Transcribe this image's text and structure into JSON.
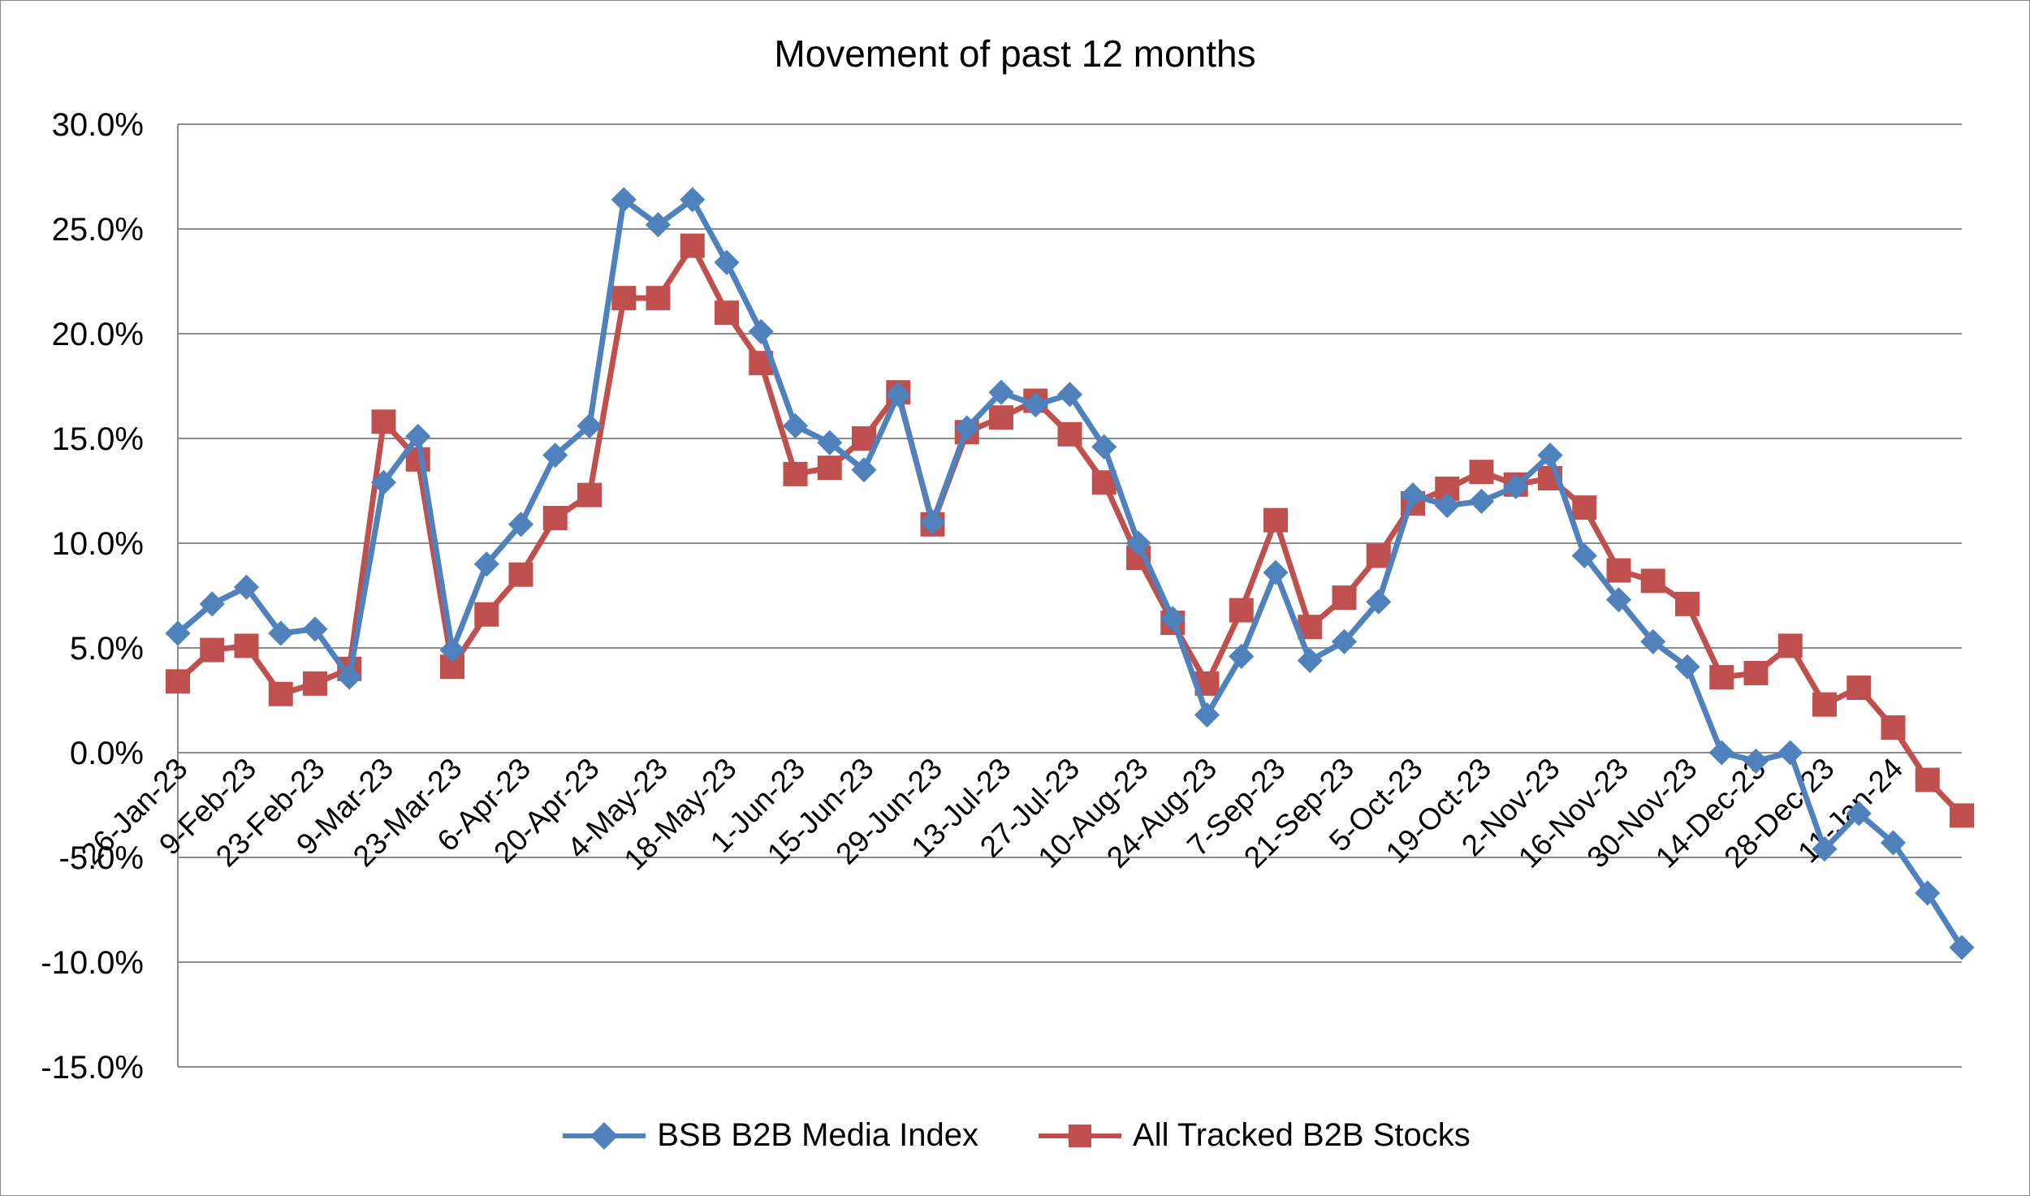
{
  "chart_data": {
    "type": "line",
    "title": "Movement of past 12 months",
    "xlabel": "",
    "ylabel": "",
    "ylim": [
      -15,
      30
    ],
    "y_ticks": [
      "30.0%",
      "25.0%",
      "20.0%",
      "15.0%",
      "10.0%",
      "5.0%",
      "0.0%",
      "-5.0%",
      "-10.0%",
      "-15.0%"
    ],
    "y_tick_values": [
      30,
      25,
      20,
      15,
      10,
      5,
      0,
      -5,
      -10,
      -15
    ],
    "x_tick_labels": [
      "26-Jan-23",
      "9-Feb-23",
      "23-Feb-23",
      "9-Mar-23",
      "23-Mar-23",
      "6-Apr-23",
      "20-Apr-23",
      "4-May-23",
      "18-May-23",
      "1-Jun-23",
      "15-Jun-23",
      "29-Jun-23",
      "13-Jul-23",
      "27-Jul-23",
      "10-Aug-23",
      "24-Aug-23",
      "7-Sep-23",
      "21-Sep-23",
      "5-Oct-23",
      "19-Oct-23",
      "2-Nov-23",
      "16-Nov-23",
      "30-Nov-23",
      "14-Dec-23",
      "28-Dec-23",
      "11-Jan-24"
    ],
    "x_tick_every": 2,
    "grid": true,
    "legend_position": "bottom",
    "series": [
      {
        "name": "BSB B2B Media Index",
        "color": "#4F81BD",
        "marker": "diamond",
        "values": [
          5.7,
          7.1,
          7.9,
          5.7,
          5.9,
          3.6,
          12.9,
          15.1,
          4.9,
          9.0,
          10.9,
          14.2,
          15.6,
          26.4,
          25.2,
          26.4,
          23.4,
          20.1,
          15.6,
          14.8,
          13.5,
          17.1,
          11.0,
          15.5,
          17.2,
          16.6,
          17.1,
          14.6,
          10.0,
          6.4,
          1.8,
          4.6,
          8.6,
          4.4,
          5.3,
          7.2,
          12.3,
          11.8,
          12.0,
          12.7,
          14.2,
          9.4,
          7.3,
          5.3,
          4.1,
          0.0,
          -0.4,
          0.0,
          -4.6,
          -2.9,
          -4.3,
          -6.7,
          -9.3
        ]
      },
      {
        "name": "All Tracked B2B Stocks",
        "color": "#C0504D",
        "marker": "square",
        "values": [
          3.4,
          4.9,
          5.1,
          2.8,
          3.3,
          4.0,
          15.8,
          14.0,
          4.1,
          6.6,
          8.5,
          11.2,
          12.3,
          21.7,
          21.7,
          24.2,
          21.0,
          18.6,
          13.3,
          13.6,
          15.0,
          17.2,
          10.9,
          15.3,
          16.0,
          16.8,
          15.2,
          12.9,
          9.3,
          6.2,
          3.3,
          6.8,
          11.1,
          6.0,
          7.4,
          9.4,
          11.9,
          12.6,
          13.4,
          12.8,
          13.1,
          11.7,
          8.7,
          8.2,
          7.1,
          3.6,
          3.8,
          5.1,
          2.3,
          3.1,
          1.2,
          -1.3,
          -3.0
        ]
      }
    ]
  }
}
